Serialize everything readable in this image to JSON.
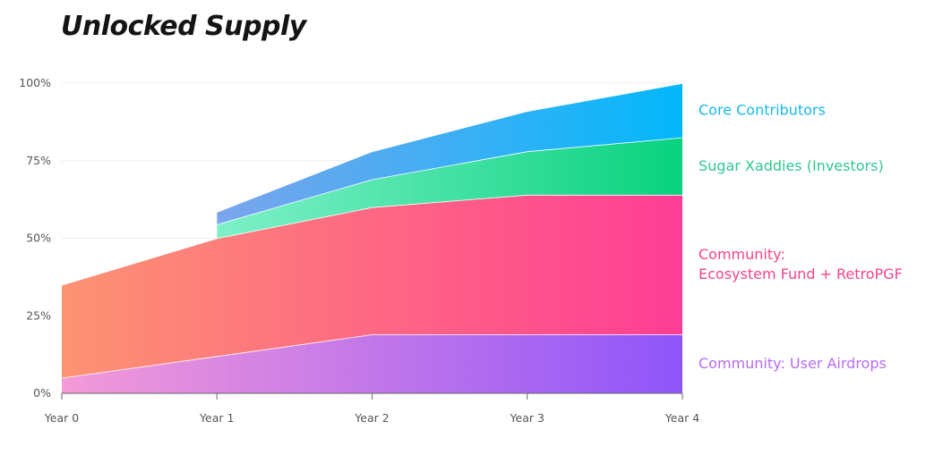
{
  "chart_data": {
    "type": "area",
    "stacked": true,
    "title": "Unlocked Supply",
    "categories": [
      "Year 0",
      "Year 1",
      "Year 2",
      "Year 3",
      "Year 4"
    ],
    "y_ticks": [
      "0%",
      "25%",
      "50%",
      "75%",
      "100%"
    ],
    "ylim": [
      0,
      100
    ],
    "grid": true,
    "legend_position": "right",
    "series": [
      {
        "name": "Community: User Airdrops",
        "values": [
          5,
          12,
          19,
          19,
          19
        ],
        "colors": [
          "#f49ad8",
          "#8f55fa"
        ]
      },
      {
        "name": "Community:\nEcosystem Fund + RetroPGF",
        "label_lines": [
          "Community:",
          "Ecosystem Fund + RetroPGF"
        ],
        "values": [
          30,
          38,
          41,
          45,
          45
        ],
        "colors": [
          "#fd9372",
          "#fe3d95"
        ]
      },
      {
        "name": "Sugar Xaddies (Investors)",
        "values": [
          null,
          4.5,
          9,
          14,
          18.5
        ],
        "colors": [
          "#7ff0c9",
          "#08d27e"
        ]
      },
      {
        "name": "Core Contributors",
        "values": [
          null,
          4,
          9,
          13,
          17.5
        ],
        "colors": [
          "#7aa5ec",
          "#03b8fb"
        ]
      }
    ],
    "legend_colors": [
      "#b56cf2",
      "#f4448c",
      "#2ec98d",
      "#16b8ea"
    ]
  }
}
